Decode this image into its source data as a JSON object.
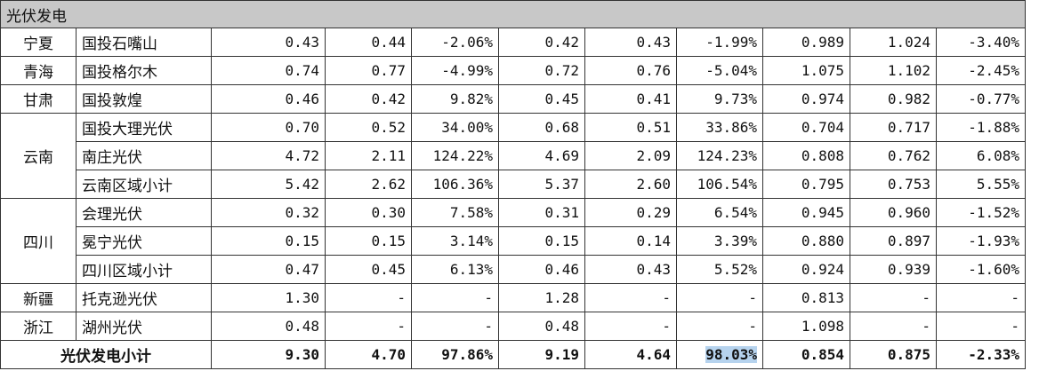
{
  "header": {
    "title": "光伏发电"
  },
  "groups": [
    {
      "region": "宁夏",
      "rows": [
        {
          "name": "国投石嘴山",
          "values": [
            "0.43",
            "0.44",
            "-2.06%",
            "0.42",
            "0.43",
            "-1.99%",
            "0.989",
            "1.024",
            "-3.40%"
          ]
        }
      ]
    },
    {
      "region": "青海",
      "rows": [
        {
          "name": "国投格尔木",
          "values": [
            "0.74",
            "0.77",
            "-4.99%",
            "0.72",
            "0.76",
            "-5.04%",
            "1.075",
            "1.102",
            "-2.45%"
          ]
        }
      ]
    },
    {
      "region": "甘肃",
      "rows": [
        {
          "name": "国投敦煌",
          "values": [
            "0.46",
            "0.42",
            "9.82%",
            "0.45",
            "0.41",
            "9.73%",
            "0.974",
            "0.982",
            "-0.77%"
          ]
        }
      ]
    },
    {
      "region": "云南",
      "rows": [
        {
          "name": "国投大理光伏",
          "values": [
            "0.70",
            "0.52",
            "34.00%",
            "0.68",
            "0.51",
            "33.86%",
            "0.704",
            "0.717",
            "-1.88%"
          ]
        },
        {
          "name": "南庄光伏",
          "values": [
            "4.72",
            "2.11",
            "124.22%",
            "4.69",
            "2.09",
            "124.23%",
            "0.808",
            "0.762",
            "6.08%"
          ]
        },
        {
          "name": "云南区域小计",
          "values": [
            "5.42",
            "2.62",
            "106.36%",
            "5.37",
            "2.60",
            "106.54%",
            "0.795",
            "0.753",
            "5.55%"
          ]
        }
      ]
    },
    {
      "region": "四川",
      "rows": [
        {
          "name": "会理光伏",
          "values": [
            "0.32",
            "0.30",
            "7.58%",
            "0.31",
            "0.29",
            "6.54%",
            "0.945",
            "0.960",
            "-1.52%"
          ]
        },
        {
          "name": "冕宁光伏",
          "values": [
            "0.15",
            "0.15",
            "3.14%",
            "0.15",
            "0.14",
            "3.39%",
            "0.880",
            "0.897",
            "-1.93%"
          ]
        },
        {
          "name": "四川区域小计",
          "values": [
            "0.47",
            "0.45",
            "6.13%",
            "0.46",
            "0.43",
            "5.52%",
            "0.924",
            "0.939",
            "-1.60%"
          ]
        }
      ]
    },
    {
      "region": "新疆",
      "rows": [
        {
          "name": "托克逊光伏",
          "values": [
            "1.30",
            "-",
            "-",
            "1.28",
            "-",
            "-",
            "0.813",
            "-",
            "-"
          ]
        }
      ]
    },
    {
      "region": "浙江",
      "rows": [
        {
          "name": "湖州光伏",
          "values": [
            "0.48",
            "-",
            "-",
            "0.48",
            "-",
            "-",
            "1.098",
            "-",
            "-"
          ]
        }
      ]
    }
  ],
  "total": {
    "label": "光伏发电小计",
    "values": [
      "9.30",
      "4.70",
      "97.86%",
      "9.19",
      "4.64",
      "98.03%",
      "0.854",
      "0.875",
      "-2.33%"
    ]
  }
}
